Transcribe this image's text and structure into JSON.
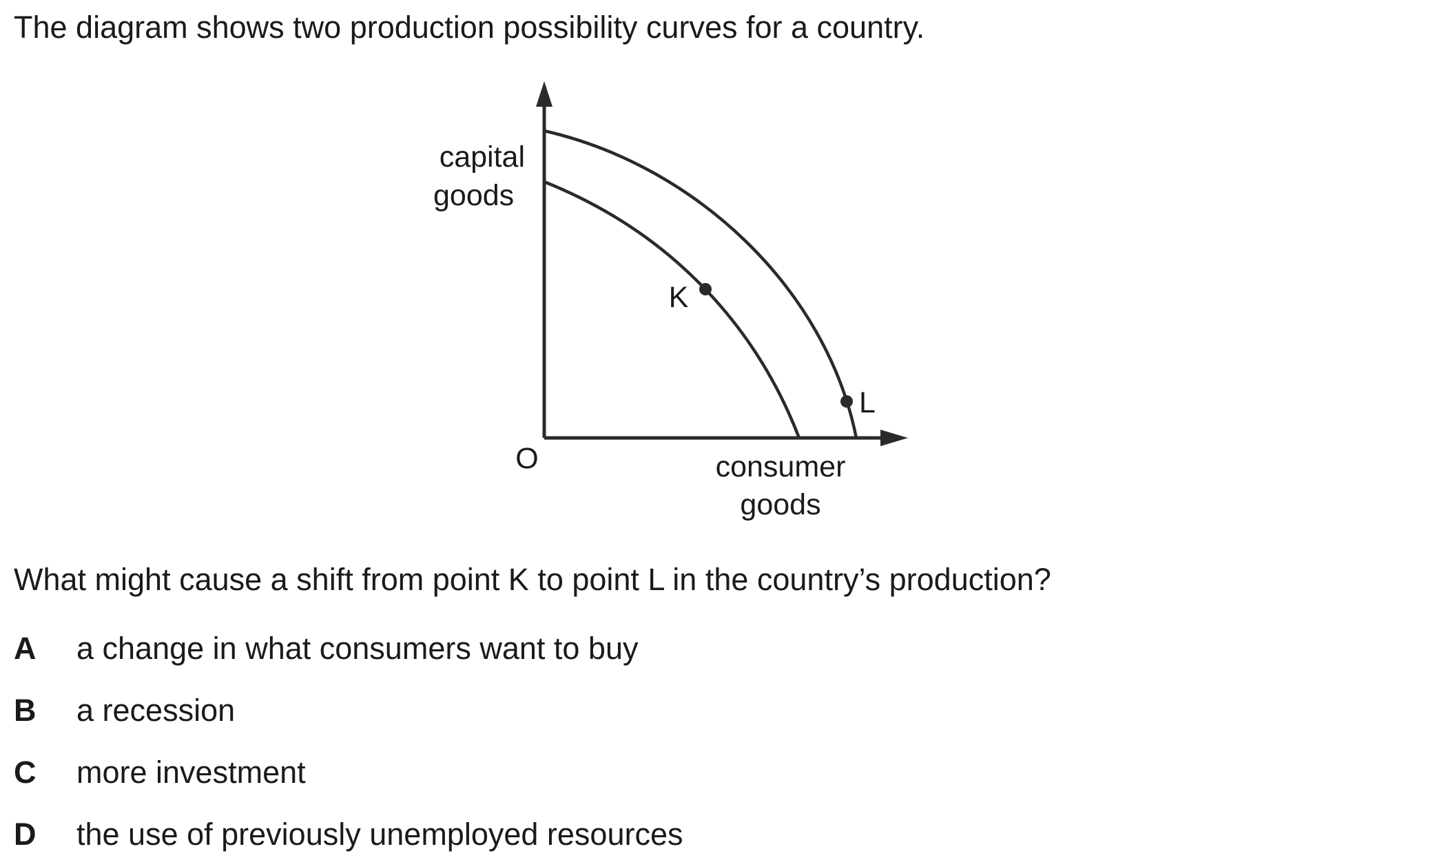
{
  "intro": "The diagram shows two production possibility curves for a country.",
  "diagram": {
    "y_axis_label_line1": "capital",
    "y_axis_label_line2": "goods",
    "x_axis_label_line1": "consumer",
    "x_axis_label_line2": "goods",
    "origin_label": "O",
    "point_k_label": "K",
    "point_l_label": "L"
  },
  "question": "What might cause a shift from point K to point L in the country’s production?",
  "options": [
    {
      "letter": "A",
      "text": "a change in what consumers want to buy"
    },
    {
      "letter": "B",
      "text": "a recession"
    },
    {
      "letter": "C",
      "text": "more investment"
    },
    {
      "letter": "D",
      "text": "the use of previously unemployed resources"
    }
  ]
}
